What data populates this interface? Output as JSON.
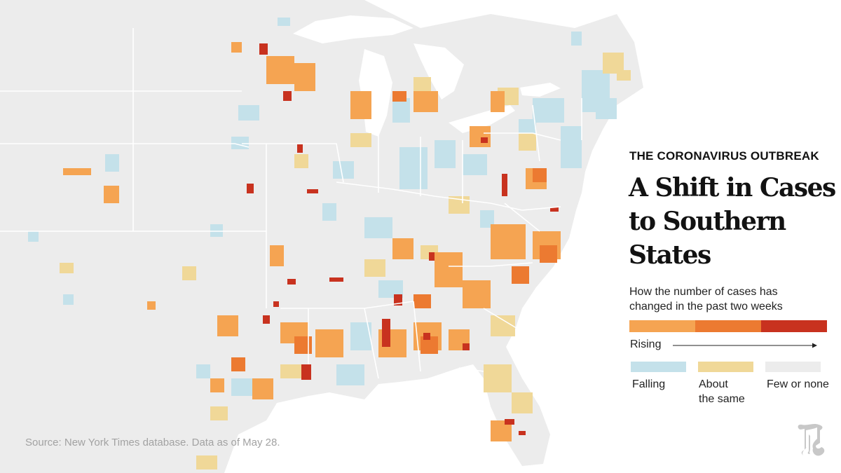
{
  "header": {
    "kicker": "THE CORONAVIRUS OUTBREAK",
    "title_lines": [
      "A Shift in Cases",
      "to Southern",
      "States"
    ]
  },
  "legend": {
    "subtitle_lines": [
      "How the number of cases has",
      "changed in the past two weeks"
    ],
    "rising_label": "Rising",
    "falling_label": "Falling",
    "same_label_lines": [
      "About",
      "the same"
    ],
    "none_label": "Few or none",
    "colors": {
      "rising_1": "#f5a452",
      "rising_2": "#ec7a31",
      "rising_3": "#c8321f",
      "falling": "#c4e1ea",
      "same": "#f0d898",
      "none": "#ececec"
    }
  },
  "map": {
    "land_color": "#ececec",
    "border_color": "#ffffff",
    "water_color": "#ffffff",
    "logo_icon": "nyt-t-logo-icon"
  },
  "source": "Source:  New York Times database.  Data as of May 28."
}
